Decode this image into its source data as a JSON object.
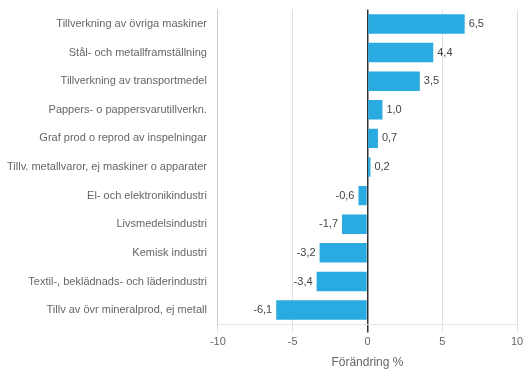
{
  "chart_data": {
    "type": "bar",
    "orientation": "horizontal",
    "categories": [
      "Tillv av övr mineralprod, ej metall",
      "Textil-, beklädnads- och läderindustri",
      "Kemisk industri",
      "Livsmedelsindustri",
      "El- och elektronikindustri",
      "Tillv. metallvaror, ej maskiner o apparater",
      "Graf prod o reprod av inspelningar",
      "Pappers- o pappersvarutillverkn.",
      "Tillverkning av transportmedel",
      "Stål- och metallframställning",
      "Tillverkning av övriga maskiner"
    ],
    "values": [
      -6.1,
      -3.4,
      -3.2,
      -1.7,
      -0.6,
      0.2,
      0.7,
      1.0,
      3.5,
      4.4,
      6.5
    ],
    "value_labels": [
      "-6,1",
      "-3,4",
      "-3,2",
      "-1,7",
      "-0,6",
      "0,2",
      "0,7",
      "1,0",
      "3,5",
      "4,4",
      "6,5"
    ],
    "color": "#29abe2",
    "xlabel": "Förändring %",
    "xlim": [
      -10,
      10
    ],
    "xticks": [
      -10,
      -5,
      0,
      5,
      10
    ],
    "grid": true,
    "data_labels": true
  }
}
